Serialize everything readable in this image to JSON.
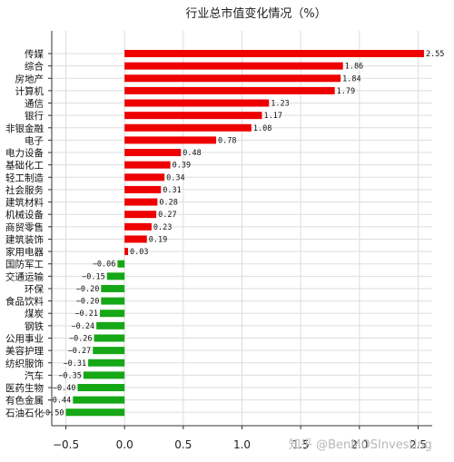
{
  "chart_data": {
    "type": "bar",
    "orientation": "horizontal",
    "title": "行业总市值变化情况（%）",
    "categories": [
      "传媒",
      "综合",
      "房地产",
      "计算机",
      "通信",
      "银行",
      "非银金融",
      "电子",
      "电力设备",
      "基础化工",
      "轻工制造",
      "社会服务",
      "建筑材料",
      "机械设备",
      "商贸零售",
      "建筑装饰",
      "家用电器",
      "国防军工",
      "交通运输",
      "环保",
      "食品饮料",
      "煤炭",
      "钢铁",
      "公用事业",
      "美容护理",
      "纺织服饰",
      "汽车",
      "医药生物",
      "有色金属",
      "石油石化"
    ],
    "values": [
      2.55,
      1.86,
      1.84,
      1.79,
      1.23,
      1.17,
      1.08,
      0.78,
      0.48,
      0.39,
      0.34,
      0.31,
      0.28,
      0.27,
      0.23,
      0.19,
      0.03,
      -0.06,
      -0.15,
      -0.2,
      -0.2,
      -0.21,
      -0.24,
      -0.26,
      -0.27,
      -0.31,
      -0.35,
      -0.4,
      -0.44,
      -0.5
    ],
    "value_labels": [
      "2.55",
      "1.86",
      "1.84",
      "1.79",
      "1.23",
      "1.17",
      "1.08",
      "0.78",
      "0.48",
      "0.39",
      "0.34",
      "0.31",
      "0.28",
      "0.27",
      "0.23",
      "0.19",
      "0.03",
      "−0.06",
      "−0.15",
      "−0.20",
      "−0.20",
      "−0.21",
      "−0.24",
      "−0.26",
      "−0.27",
      "−0.31",
      "−0.35",
      "−0.40",
      "−0.44",
      "−0.50"
    ],
    "xlim": [
      -0.62,
      2.62
    ],
    "xticks": [
      -0.5,
      0.0,
      0.5,
      1.0,
      1.5,
      2.0,
      2.5
    ],
    "xtick_labels": [
      "−0.5",
      "0.0",
      "0.5",
      "1.0",
      "1.5",
      "2.0",
      "2.5"
    ],
    "positive_color": "#ee0000",
    "negative_color": "#16a716",
    "grid": true,
    "xlabel": "",
    "ylabel": ""
  },
  "watermark": "知乎 @BenMOSInvesting"
}
